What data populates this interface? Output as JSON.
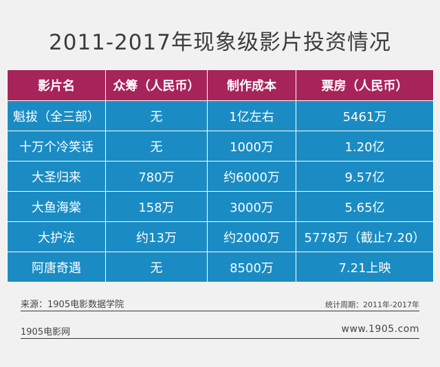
{
  "title": "2011-2017年现象级影片投资情况",
  "table": {
    "headers": [
      "影片名",
      "众筹（人民币）",
      "制作成本",
      "票房（人民币）"
    ],
    "rows": [
      [
        "魁拔（全三部）",
        "无",
        "1亿左右",
        "5461万"
      ],
      [
        "十万个冷笑话",
        "无",
        "1000万",
        "1.20亿"
      ],
      [
        "大圣归来",
        "780万",
        "约6000万",
        "9.57亿"
      ],
      [
        "大鱼海棠",
        "158万",
        "3000万",
        "5.65亿"
      ],
      [
        "大护法",
        "约13万",
        "约2000万",
        "5778万（截止7.20）"
      ],
      [
        "阿唐奇遇",
        "无",
        "8500万",
        "7.21上映"
      ]
    ]
  },
  "source": {
    "label": "来源：1905电影数据学院",
    "period": "统计周期：2011年-2017年"
  },
  "footer": {
    "brand": "1905电影网",
    "url": "www.1905.com"
  },
  "colors": {
    "header_bg": "#a7245a",
    "cell_bg": "#1a8cc3",
    "background": "#f1f1f1"
  }
}
